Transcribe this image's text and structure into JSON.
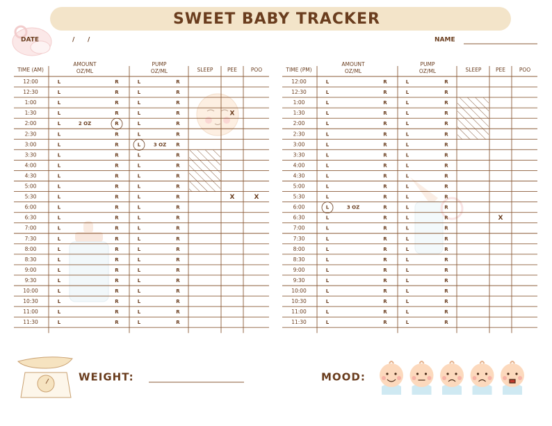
{
  "header": {
    "title": "SWEET BABY TRACKER",
    "date_label": "DATE",
    "date_separators": [
      "/",
      "/"
    ],
    "name_label": "NAME"
  },
  "tables": [
    {
      "headers": {
        "time": "TIME (AM)",
        "amount": [
          "AMOUNT",
          "OZ/ML"
        ],
        "pump": [
          "PUMP",
          "OZ/ML"
        ],
        "sleep": "SLEEP",
        "pee": "PEE",
        "poo": "POO"
      },
      "side_labels": [
        "L",
        "R"
      ],
      "rows": [
        {
          "time": "12:00"
        },
        {
          "time": "12:30"
        },
        {
          "time": "1:00"
        },
        {
          "time": "1:30",
          "pee": "X"
        },
        {
          "time": "2:00",
          "amount": "2 OZ",
          "amount_circled": "R"
        },
        {
          "time": "2:30"
        },
        {
          "time": "3:00",
          "pump": "3 OZ",
          "pump_circled": "L"
        },
        {
          "time": "3:30",
          "sleep": true
        },
        {
          "time": "4:00",
          "sleep": true
        },
        {
          "time": "4:30",
          "sleep": true
        },
        {
          "time": "5:00",
          "sleep": true
        },
        {
          "time": "5:30",
          "pee": "X",
          "poo": "X"
        },
        {
          "time": "6:00"
        },
        {
          "time": "6:30"
        },
        {
          "time": "7:00"
        },
        {
          "time": "7:30"
        },
        {
          "time": "8:00"
        },
        {
          "time": "8:30"
        },
        {
          "time": "9:00"
        },
        {
          "time": "9:30"
        },
        {
          "time": "10:00"
        },
        {
          "time": "10:30"
        },
        {
          "time": "11:00"
        },
        {
          "time": "11:30"
        }
      ]
    },
    {
      "headers": {
        "time": "TIME (PM)",
        "amount": [
          "AMOUNT",
          "OZ/ML"
        ],
        "pump": [
          "PUMP",
          "OZ/ML"
        ],
        "sleep": "SLEEP",
        "pee": "PEE",
        "poo": "POO"
      },
      "side_labels": [
        "L",
        "R"
      ],
      "rows": [
        {
          "time": "12:00"
        },
        {
          "time": "12:30"
        },
        {
          "time": "1:00",
          "sleep": true
        },
        {
          "time": "1:30",
          "sleep": true
        },
        {
          "time": "2:00",
          "sleep": true
        },
        {
          "time": "2:30",
          "sleep": true
        },
        {
          "time": "3:00"
        },
        {
          "time": "3:30"
        },
        {
          "time": "4:00"
        },
        {
          "time": "4:30"
        },
        {
          "time": "5:00"
        },
        {
          "time": "5:30"
        },
        {
          "time": "6:00",
          "amount": "3 OZ",
          "amount_circled": "L"
        },
        {
          "time": "6:30",
          "pee": "X"
        },
        {
          "time": "7:00"
        },
        {
          "time": "7:30"
        },
        {
          "time": "8:00"
        },
        {
          "time": "8:30"
        },
        {
          "time": "9:00"
        },
        {
          "time": "9:30"
        },
        {
          "time": "10:00"
        },
        {
          "time": "10:30"
        },
        {
          "time": "11:00"
        },
        {
          "time": "11:30"
        }
      ]
    }
  ],
  "footer": {
    "weight_label": "WEIGHT:",
    "mood_label": "MOOD:"
  }
}
